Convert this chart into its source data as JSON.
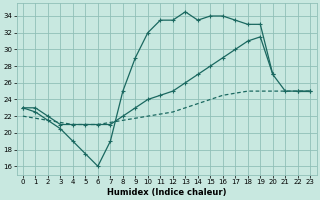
{
  "xlabel": "Humidex (Indice chaleur)",
  "background_color": "#c8e8e0",
  "grid_color": "#90c0b8",
  "line_color": "#1a6860",
  "xlim": [
    -0.5,
    23.5
  ],
  "ylim": [
    15,
    35.5
  ],
  "yticks": [
    16,
    18,
    20,
    22,
    24,
    26,
    28,
    30,
    32,
    34
  ],
  "xticks": [
    0,
    1,
    2,
    3,
    4,
    5,
    6,
    7,
    8,
    9,
    10,
    11,
    12,
    13,
    14,
    15,
    16,
    17,
    18,
    19,
    20,
    21,
    22,
    23
  ],
  "line1_x": [
    0,
    1,
    2,
    3,
    4,
    5,
    6,
    7,
    8,
    9,
    10,
    11,
    12,
    13,
    14,
    15,
    16,
    17,
    18,
    19,
    20,
    21,
    22,
    23
  ],
  "line1_y": [
    23,
    22.5,
    21.5,
    20.5,
    19,
    17.5,
    16,
    19,
    25,
    29,
    32,
    33.5,
    33.5,
    34.5,
    33.5,
    34,
    34,
    33.5,
    33,
    33,
    27,
    null,
    25,
    25
  ],
  "line2_x": [
    0,
    1,
    2,
    3,
    4,
    5,
    6,
    7,
    8,
    9,
    10,
    11,
    12,
    13,
    14,
    15,
    16,
    17,
    18,
    19,
    20,
    21,
    22,
    23
  ],
  "line2_y": [
    23,
    23,
    22,
    21,
    21,
    21,
    21,
    21,
    22,
    23,
    24,
    24.5,
    25,
    26,
    27,
    28,
    29,
    30,
    31,
    31.5,
    27,
    25,
    25,
    25
  ],
  "line3_x": [
    0,
    2,
    4,
    6,
    8,
    10,
    12,
    14,
    16,
    18,
    20,
    22,
    23
  ],
  "line3_y": [
    22,
    21.5,
    21,
    21,
    21.5,
    22,
    22.5,
    23.5,
    24.5,
    25,
    25,
    25,
    25
  ]
}
